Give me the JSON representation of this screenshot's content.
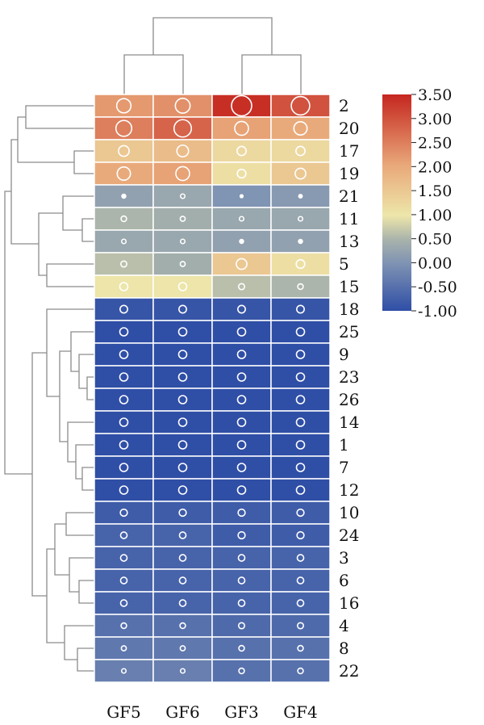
{
  "chart_data": {
    "type": "heatmap",
    "title": "",
    "columns": [
      "GF5",
      "GF6",
      "GF3",
      "GF4"
    ],
    "rows": [
      "2",
      "20",
      "17",
      "19",
      "21",
      "11",
      "13",
      "5",
      "15",
      "18",
      "25",
      "9",
      "23",
      "26",
      "14",
      "1",
      "7",
      "12",
      "10",
      "24",
      "3",
      "6",
      "16",
      "4",
      "8",
      "22"
    ],
    "values": [
      [
        2.2,
        2.3,
        3.4,
        3.0
      ],
      [
        2.5,
        2.8,
        2.1,
        2.0
      ],
      [
        1.5,
        1.7,
        1.2,
        1.2
      ],
      [
        2.0,
        2.1,
        1.1,
        1.5
      ],
      [
        0.2,
        0.3,
        0.0,
        0.1
      ],
      [
        0.5,
        0.4,
        0.3,
        0.3
      ],
      [
        0.3,
        0.3,
        0.2,
        0.2
      ],
      [
        0.6,
        0.4,
        1.5,
        1.1
      ],
      [
        1.0,
        1.0,
        0.6,
        0.5
      ],
      [
        -0.9,
        -0.9,
        -0.9,
        -0.9
      ],
      [
        -1.0,
        -1.0,
        -1.0,
        -1.0
      ],
      [
        -1.0,
        -1.0,
        -1.0,
        -1.0
      ],
      [
        -1.0,
        -1.0,
        -1.0,
        -1.0
      ],
      [
        -1.0,
        -1.0,
        -1.0,
        -1.0
      ],
      [
        -1.0,
        -1.0,
        -1.0,
        -1.0
      ],
      [
        -1.0,
        -1.0,
        -1.0,
        -1.0
      ],
      [
        -1.0,
        -1.0,
        -1.0,
        -1.0
      ],
      [
        -1.0,
        -1.0,
        -1.0,
        -1.0
      ],
      [
        -0.8,
        -0.8,
        -0.8,
        -0.8
      ],
      [
        -0.7,
        -0.7,
        -0.8,
        -0.8
      ],
      [
        -0.7,
        -0.7,
        -0.7,
        -0.7
      ],
      [
        -0.7,
        -0.7,
        -0.7,
        -0.7
      ],
      [
        -0.7,
        -0.7,
        -0.7,
        -0.7
      ],
      [
        -0.5,
        -0.5,
        -0.6,
        -0.6
      ],
      [
        -0.4,
        -0.4,
        -0.5,
        -0.5
      ],
      [
        -0.3,
        -0.3,
        -0.5,
        -0.5
      ]
    ],
    "color_scale": {
      "min": -1.0,
      "max": 3.5,
      "ticks": [
        "3.50",
        "3.00",
        "2.50",
        "2.00",
        "1.50",
        "1.00",
        "0.50",
        "0.00",
        "-0.50",
        "-1.00"
      ],
      "colors": [
        "#2f4ea6",
        "#7f93b3",
        "#a9b3ab",
        "#ede6aa",
        "#e9a97a",
        "#c5261f"
      ]
    },
    "legend": "right",
    "dendrogram_top": true,
    "dendrogram_left": true
  }
}
